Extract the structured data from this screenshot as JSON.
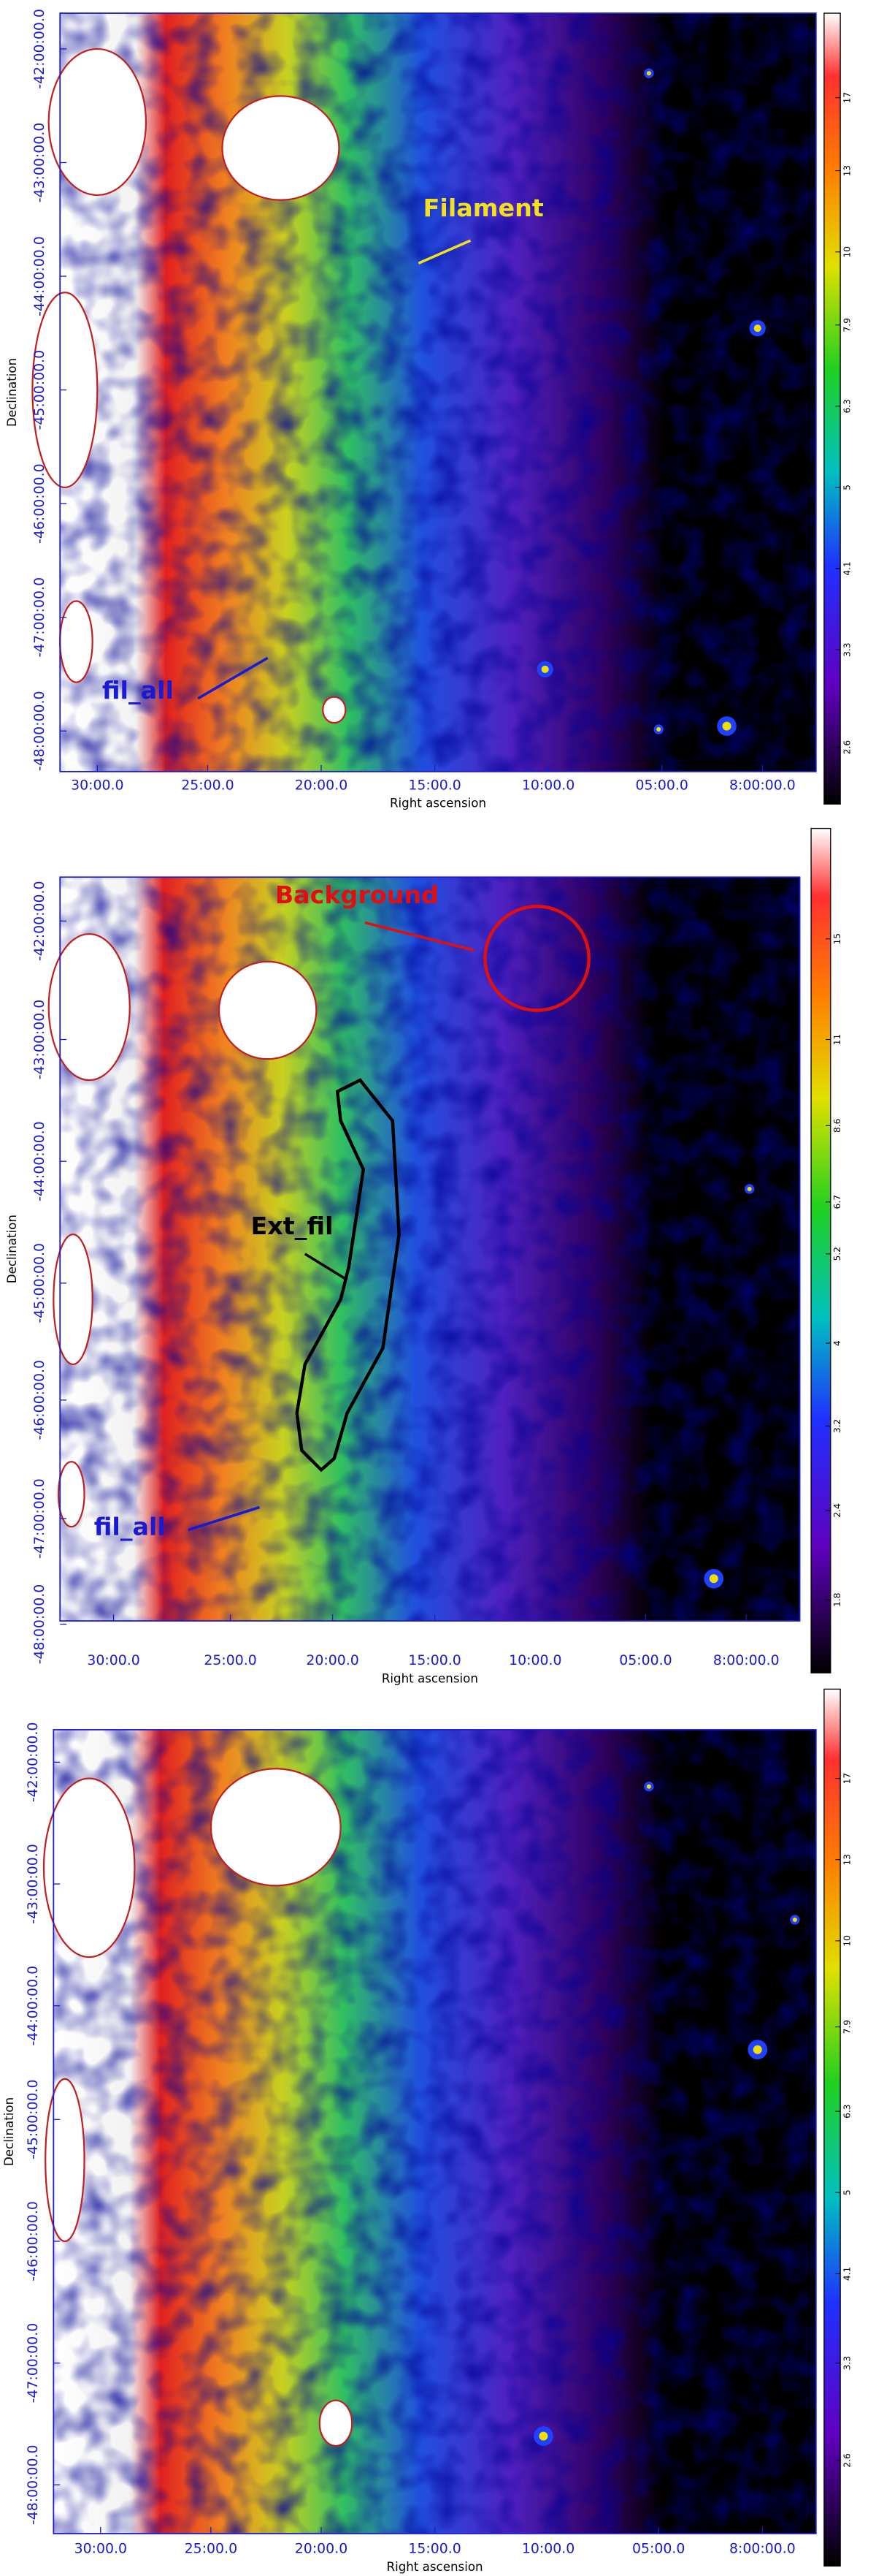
{
  "panels": [
    {
      "xticks": [
        "30:00.0",
        "25:00.0",
        "20:00.0",
        "15:00.0",
        "10:00.0",
        "05:00.0",
        "8:00:00.0"
      ],
      "yticks": [
        "-42:00:00.0",
        "-43:00:00.0",
        "-44:00:00.0",
        "-45:00:00.0",
        "-46:00:00.0",
        "-47:00:00.0",
        "-48:00:00.0"
      ],
      "xlabel": "Right ascension",
      "ylabel": "Declination",
      "colorbar": [
        "17",
        "13",
        "10",
        "7.9",
        "6.3",
        "5",
        "4.1",
        "3.3",
        "2.6"
      ],
      "annotations": [
        "Filament",
        "fil_all"
      ]
    },
    {
      "xticks": [
        "30:00.0",
        "25:00.0",
        "20:00.0",
        "15:00.0",
        "10:00.0",
        "05:00.0",
        "8:00:00.0"
      ],
      "yticks": [
        "-42:00:00.0",
        "-43:00:00.0",
        "-44:00:00.0",
        "-45:00:00.0",
        "-46:00:00.0",
        "-47:00:00.0",
        "-48:00:00.0"
      ],
      "xlabel": "Right ascension",
      "ylabel": "Declination",
      "colorbar": [
        "15",
        "11",
        "8.6",
        "6.7",
        "5.2",
        "4",
        "3.2",
        "2.4",
        "1.8"
      ],
      "annotations": [
        "Background",
        "Ext_fil",
        "fil_all"
      ]
    },
    {
      "xticks": [
        "30:00.0",
        "25:00.0",
        "20:00.0",
        "15:00.0",
        "10:00.0",
        "05:00.0",
        "8:00:00.0"
      ],
      "yticks": [
        "-42:00:00.0",
        "-43:00:00.0",
        "-44:00:00.0",
        "-45:00:00.0",
        "-46:00:00.0",
        "-47:00:00.0",
        "-48:00:00.0"
      ],
      "xlabel": "Right ascension",
      "ylabel": "Declination",
      "colorbar": [
        "17",
        "13",
        "10",
        "7.9",
        "6.3",
        "5",
        "4.1",
        "3.3",
        "2.6"
      ],
      "annotations": []
    }
  ]
}
